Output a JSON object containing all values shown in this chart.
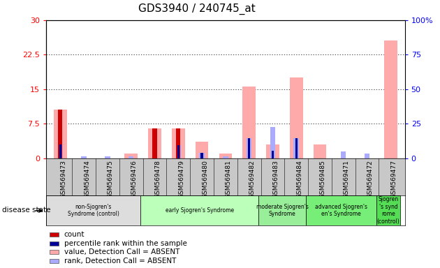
{
  "title": "GDS3940 / 240745_at",
  "samples": [
    "GSM569473",
    "GSM569474",
    "GSM569475",
    "GSM569476",
    "GSM569478",
    "GSM569479",
    "GSM569480",
    "GSM569481",
    "GSM569482",
    "GSM569483",
    "GSM569484",
    "GSM569485",
    "GSM569471",
    "GSM569472",
    "GSM569477"
  ],
  "count_values": [
    10.5,
    0,
    0,
    0,
    6.5,
    6.5,
    0,
    0,
    0,
    0,
    0,
    0,
    0,
    0,
    0
  ],
  "rank_values": [
    10.0,
    0,
    0,
    0,
    0,
    9.5,
    4.0,
    0,
    14.5,
    5.5,
    14.5,
    0,
    0,
    0,
    0
  ],
  "absent_value_values": [
    10.5,
    0,
    0,
    1.0,
    6.5,
    6.5,
    3.5,
    1.0,
    15.5,
    3.0,
    17.5,
    3.0,
    0,
    0,
    25.5
  ],
  "absent_rank_values": [
    10.0,
    1.5,
    1.5,
    1.5,
    0,
    9.5,
    4.0,
    1.5,
    14.5,
    22.5,
    14.5,
    0,
    5.0,
    3.5,
    0
  ],
  "disease_groups": [
    {
      "label": "non-Sjogren's\nSyndrome (control)",
      "start": 0,
      "end": 4,
      "color": "#dddddd"
    },
    {
      "label": "early Sjogren's Syndrome",
      "start": 4,
      "end": 9,
      "color": "#bbffbb"
    },
    {
      "label": "moderate Sjogren's\nSyndrome",
      "start": 9,
      "end": 11,
      "color": "#99ee99"
    },
    {
      "label": "advanced Sjogren's\nen's Syndrome",
      "start": 11,
      "end": 14,
      "color": "#77ee77"
    },
    {
      "label": "Sjogren\n's synd\nrome\n(control)",
      "start": 14,
      "end": 15,
      "color": "#55dd55"
    }
  ],
  "left_yticks": [
    0,
    7.5,
    15,
    22.5,
    30
  ],
  "right_yticks": [
    0,
    25,
    50,
    75,
    100
  ],
  "count_color": "#cc0000",
  "rank_color": "#000099",
  "absent_value_color": "#ffaaaa",
  "absent_rank_color": "#aaaaff",
  "label_bg_color": "#c8c8c8",
  "plot_bg": "#ffffff"
}
